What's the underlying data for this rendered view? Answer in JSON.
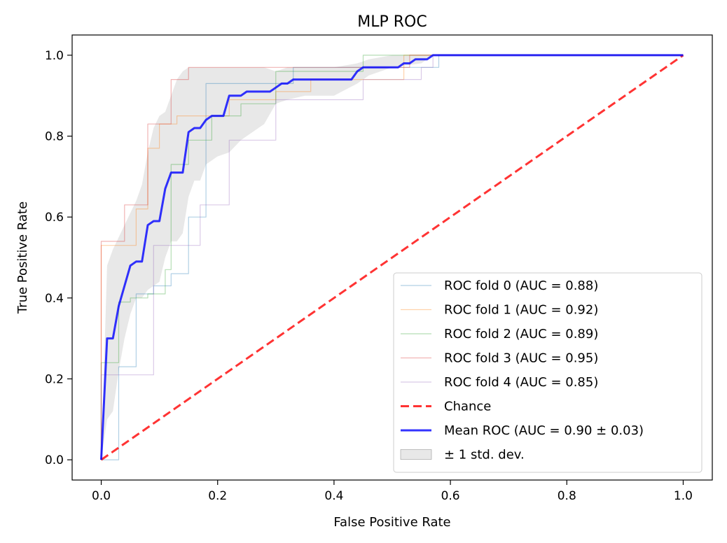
{
  "chart_data": {
    "type": "line",
    "title": "MLP ROC",
    "xlabel": "False Positive Rate",
    "ylabel": "True Positive Rate",
    "xlim": [
      -0.05,
      1.05
    ],
    "ylim": [
      -0.05,
      1.05
    ],
    "xticks": [
      "0.0",
      "0.2",
      "0.4",
      "0.6",
      "0.8",
      "1.0"
    ],
    "yticks": [
      "0.0",
      "0.2",
      "0.4",
      "0.6",
      "0.8",
      "1.0"
    ],
    "xtick_values": [
      0,
      0.2,
      0.4,
      0.6,
      0.8,
      1.0
    ],
    "ytick_values": [
      0,
      0.2,
      0.4,
      0.6,
      0.8,
      1.0
    ],
    "legend_position": "lower-right",
    "grid": false,
    "series": [
      {
        "name": "ROC fold 0 (AUC = 0.88)",
        "color": "#1f77b4",
        "step": true,
        "x": [
          0,
          0.03,
          0.03,
          0.06,
          0.09,
          0.12,
          0.15,
          0.15,
          0.18,
          0.27,
          0.33,
          0.45,
          0.55,
          0.58,
          1.0
        ],
        "y": [
          0,
          0,
          0.23,
          0.41,
          0.43,
          0.46,
          0.5,
          0.6,
          0.93,
          0.93,
          0.97,
          0.97,
          0.97,
          1.0,
          1.0
        ]
      },
      {
        "name": "ROC fold 1 (AUC = 0.92)",
        "color": "#ff7f0e",
        "step": true,
        "x": [
          0,
          0.0,
          0.03,
          0.06,
          0.08,
          0.1,
          0.13,
          0.16,
          0.22,
          0.3,
          0.36,
          0.52,
          0.52,
          1.0
        ],
        "y": [
          0,
          0.53,
          0.53,
          0.62,
          0.77,
          0.83,
          0.85,
          0.85,
          0.89,
          0.91,
          0.94,
          0.94,
          1.0,
          1.0
        ]
      },
      {
        "name": "ROC fold 2 (AUC = 0.89)",
        "color": "#2ca02c",
        "step": true,
        "x": [
          0,
          0.0,
          0.03,
          0.05,
          0.08,
          0.11,
          0.12,
          0.15,
          0.19,
          0.24,
          0.3,
          0.45,
          0.45,
          1.0
        ],
        "y": [
          0,
          0.24,
          0.39,
          0.4,
          0.41,
          0.47,
          0.73,
          0.79,
          0.85,
          0.88,
          0.96,
          0.96,
          1.0,
          1.0
        ]
      },
      {
        "name": "ROC fold 3 (AUC = 0.95)",
        "color": "#d62728",
        "step": true,
        "x": [
          0,
          0.0,
          0.04,
          0.07,
          0.08,
          0.11,
          0.12,
          0.15,
          0.15,
          0.45,
          0.53,
          1.0
        ],
        "y": [
          0,
          0.54,
          0.63,
          0.63,
          0.83,
          0.83,
          0.94,
          0.94,
          0.97,
          0.97,
          1.0,
          1.0
        ]
      },
      {
        "name": "ROC fold 4 (AUC = 0.85)",
        "color": "#9467bd",
        "step": true,
        "x": [
          0,
          0.0,
          0.03,
          0.09,
          0.09,
          0.17,
          0.17,
          0.22,
          0.22,
          0.3,
          0.3,
          0.42,
          0.45,
          0.55,
          0.57,
          1.0
        ],
        "y": [
          0,
          0.21,
          0.21,
          0.21,
          0.53,
          0.53,
          0.63,
          0.63,
          0.79,
          0.79,
          0.89,
          0.89,
          0.94,
          0.97,
          1.0,
          1.0
        ]
      },
      {
        "name": "Chance",
        "color": "#ff0000",
        "dashed": true,
        "x": [
          0,
          1
        ],
        "y": [
          0,
          1
        ]
      },
      {
        "name": "Mean ROC (AUC = 0.90 ± 0.03)",
        "color": "#0000ff",
        "x": [
          0,
          0.01,
          0.02,
          0.03,
          0.04,
          0.05,
          0.06,
          0.07,
          0.08,
          0.09,
          0.1,
          0.11,
          0.12,
          0.13,
          0.14,
          0.15,
          0.16,
          0.17,
          0.18,
          0.19,
          0.2,
          0.21,
          0.22,
          0.23,
          0.24,
          0.25,
          0.26,
          0.27,
          0.28,
          0.29,
          0.3,
          0.31,
          0.32,
          0.33,
          0.35,
          0.37,
          0.39,
          0.41,
          0.43,
          0.44,
          0.45,
          0.46,
          0.47,
          0.48,
          0.49,
          0.5,
          0.51,
          0.52,
          0.53,
          0.54,
          0.55,
          0.56,
          0.57,
          0.6,
          0.7,
          0.8,
          0.9,
          1.0
        ],
        "y": [
          0,
          0.3,
          0.3,
          0.38,
          0.43,
          0.48,
          0.49,
          0.49,
          0.58,
          0.59,
          0.59,
          0.67,
          0.71,
          0.71,
          0.71,
          0.81,
          0.82,
          0.82,
          0.84,
          0.85,
          0.85,
          0.85,
          0.9,
          0.9,
          0.9,
          0.91,
          0.91,
          0.91,
          0.91,
          0.91,
          0.92,
          0.93,
          0.93,
          0.94,
          0.94,
          0.94,
          0.94,
          0.94,
          0.94,
          0.96,
          0.97,
          0.97,
          0.97,
          0.97,
          0.97,
          0.97,
          0.97,
          0.98,
          0.98,
          0.99,
          0.99,
          0.99,
          1.0,
          1.0,
          1.0,
          1.0,
          1.0,
          1.0
        ]
      }
    ],
    "std_band": {
      "name": "± 1 std. dev.",
      "color": "#bdbdbd",
      "x": [
        0,
        0.01,
        0.02,
        0.03,
        0.04,
        0.05,
        0.06,
        0.07,
        0.08,
        0.09,
        0.1,
        0.11,
        0.12,
        0.13,
        0.14,
        0.15,
        0.16,
        0.17,
        0.18,
        0.19,
        0.2,
        0.22,
        0.24,
        0.26,
        0.28,
        0.3,
        0.32,
        0.35,
        0.4,
        0.44,
        0.46,
        0.5,
        0.55,
        0.57,
        0.6,
        1.0
      ],
      "upper": [
        0,
        0.48,
        0.52,
        0.55,
        0.58,
        0.61,
        0.64,
        0.68,
        0.76,
        0.82,
        0.85,
        0.86,
        0.9,
        0.94,
        0.96,
        0.97,
        0.97,
        0.97,
        0.97,
        0.97,
        0.97,
        0.97,
        0.97,
        0.97,
        0.97,
        0.96,
        0.97,
        0.97,
        0.97,
        0.98,
        0.99,
        1.0,
        1.0,
        1.0,
        1.0,
        1.0
      ],
      "lower": [
        0,
        0.1,
        0.12,
        0.22,
        0.3,
        0.36,
        0.4,
        0.4,
        0.42,
        0.43,
        0.44,
        0.5,
        0.54,
        0.54,
        0.56,
        0.65,
        0.69,
        0.69,
        0.73,
        0.74,
        0.75,
        0.76,
        0.79,
        0.81,
        0.83,
        0.88,
        0.89,
        0.9,
        0.9,
        0.93,
        0.95,
        0.97,
        0.98,
        1.0,
        1.0,
        1.0
      ]
    }
  }
}
